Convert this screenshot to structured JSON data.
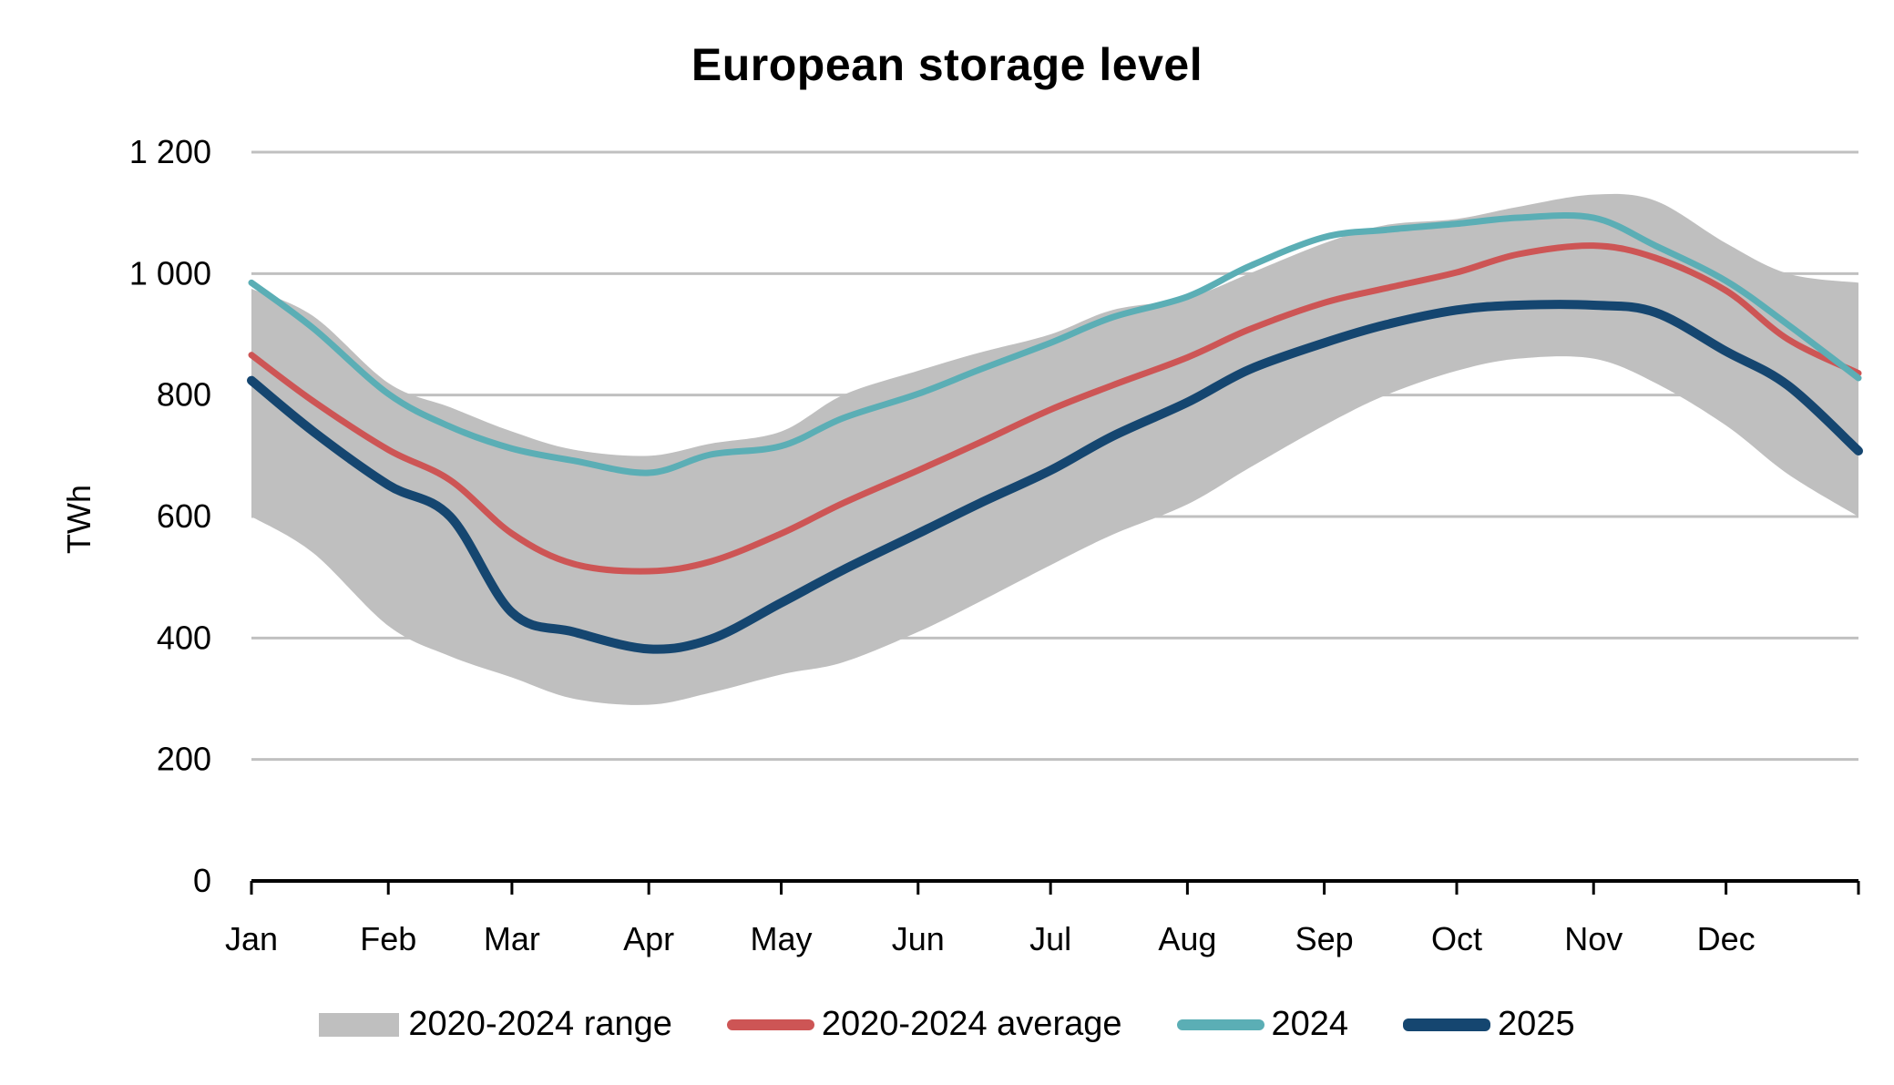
{
  "chart_data": {
    "type": "line",
    "title": "European storage level",
    "xlabel": "",
    "ylabel": "TWh",
    "ylim": [
      0,
      1200
    ],
    "yticks": [
      0,
      200,
      400,
      600,
      800,
      1000,
      1200
    ],
    "ytick_labels": [
      "0",
      "200",
      "400",
      "600",
      "800",
      "1 000",
      "1 200"
    ],
    "xlim_day_of_year": [
      1,
      365
    ],
    "x_tick_labels": [
      "Jan",
      "Feb",
      "Mar",
      "Apr",
      "May",
      "Jun",
      "Jul",
      "Aug",
      "Sep",
      "Oct",
      "Nov",
      "Dec"
    ],
    "x_tick_days": [
      1,
      32,
      60,
      91,
      121,
      152,
      182,
      213,
      244,
      274,
      305,
      335
    ],
    "grid": "horizontal",
    "legend_position": "bottom",
    "x_day_of_year": [
      1,
      15,
      32,
      46,
      60,
      74,
      91,
      105,
      121,
      135,
      152,
      166,
      182,
      196,
      213,
      227,
      244,
      258,
      274,
      288,
      305,
      319,
      335,
      349,
      365
    ],
    "band": {
      "name": "2020-2024 range",
      "color": "#bfbfbf",
      "max": [
        975,
        930,
        820,
        780,
        740,
        710,
        700,
        720,
        740,
        800,
        840,
        870,
        900,
        940,
        960,
        1000,
        1050,
        1080,
        1090,
        1110,
        1130,
        1120,
        1050,
        1000,
        985
      ],
      "min": [
        600,
        540,
        420,
        370,
        335,
        300,
        290,
        310,
        340,
        360,
        410,
        460,
        520,
        570,
        620,
        680,
        750,
        800,
        840,
        860,
        860,
        820,
        750,
        670,
        600
      ]
    },
    "series": [
      {
        "name": "2020-2024 average",
        "color": "#cd5555",
        "values": [
          866,
          790,
          710,
          660,
          572,
          522,
          510,
          526,
          572,
          622,
          676,
          722,
          776,
          816,
          862,
          908,
          952,
          976,
          1002,
          1032,
          1046,
          1026,
          972,
          892,
          836
        ]
      },
      {
        "name": "2024",
        "color": "#5baeb5",
        "values": [
          985,
          910,
          802,
          748,
          712,
          692,
          672,
          702,
          716,
          762,
          802,
          842,
          886,
          928,
          962,
          1012,
          1060,
          1072,
          1082,
          1092,
          1092,
          1046,
          988,
          916,
          828
        ]
      },
      {
        "name": "2025",
        "color": "#154670",
        "values": [
          824,
          740,
          652,
          600,
          442,
          410,
          382,
          398,
          458,
          512,
          572,
          622,
          676,
          732,
          788,
          842,
          886,
          916,
          940,
          948,
          948,
          936,
          872,
          816,
          708
        ]
      }
    ]
  },
  "legend": {
    "items": [
      {
        "label": "2020-2024 range",
        "color": "#bfbfbf",
        "kind": "box"
      },
      {
        "label": "2020-2024 average",
        "color": "#cd5555",
        "kind": "line"
      },
      {
        "label": "2024",
        "color": "#5baeb5",
        "kind": "line"
      },
      {
        "label": "2025",
        "color": "#154670",
        "kind": "line"
      }
    ]
  }
}
